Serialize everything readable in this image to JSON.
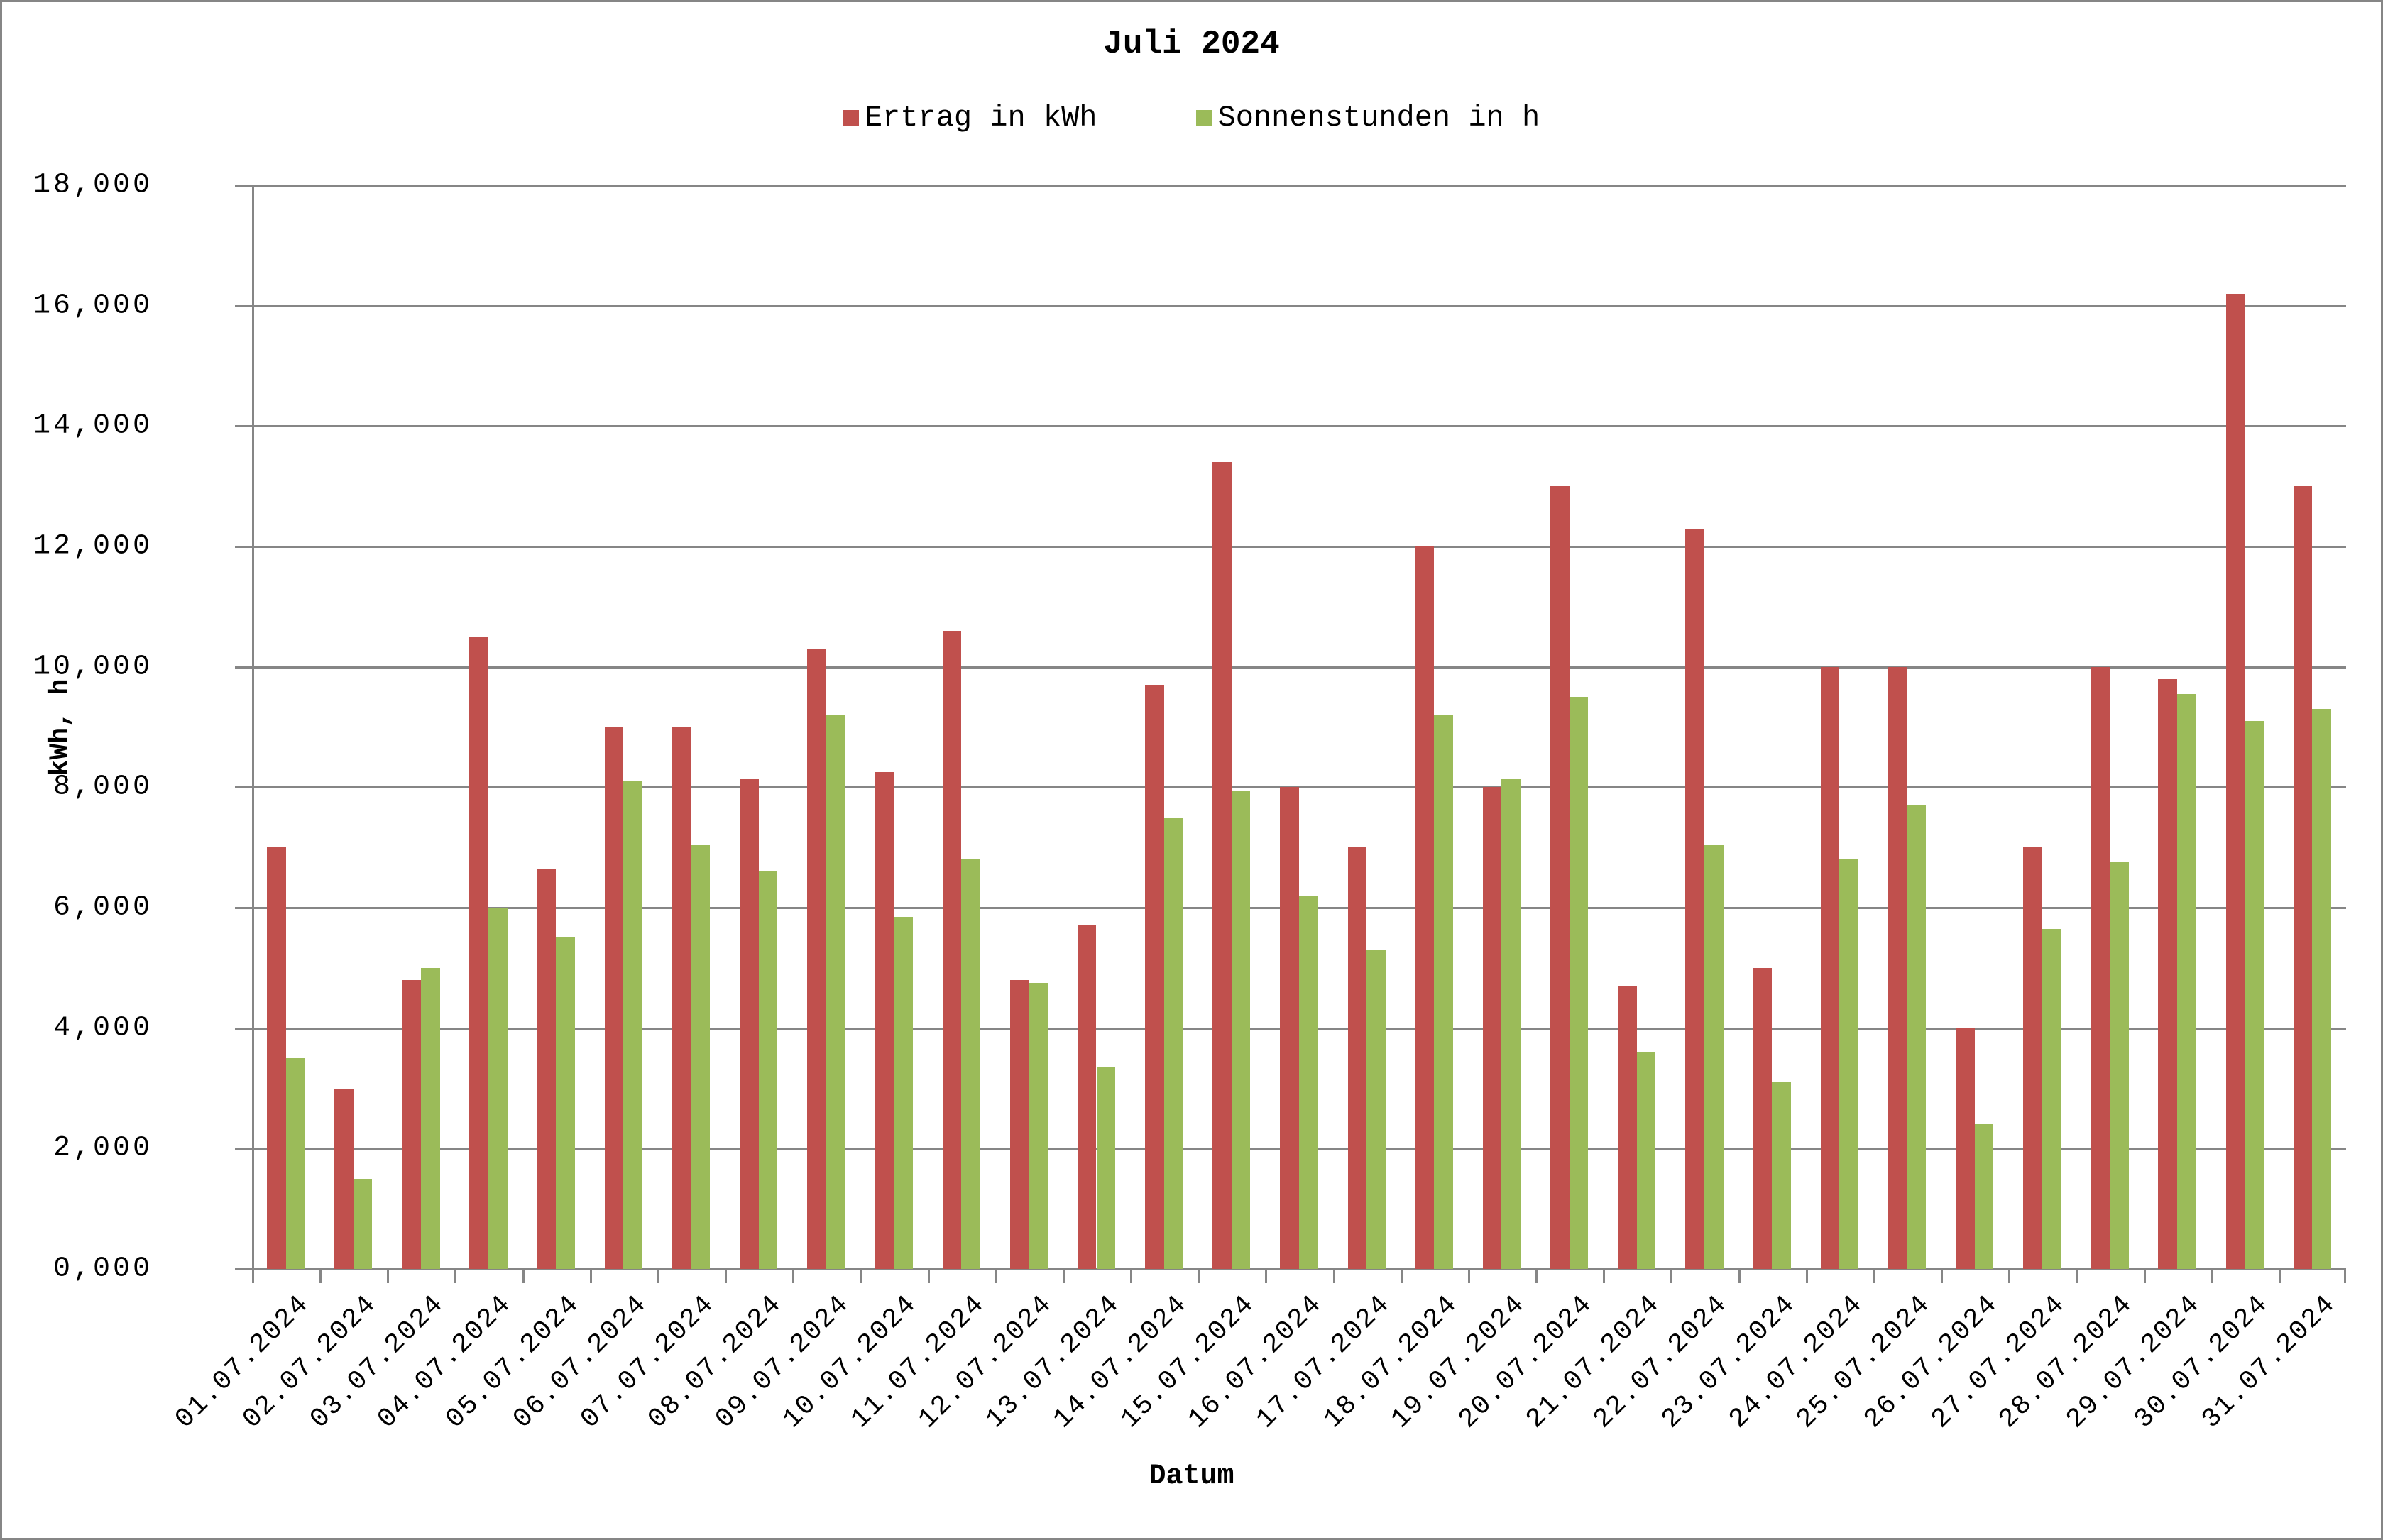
{
  "chart_data": {
    "type": "bar",
    "title": "Juli 2024",
    "xlabel": "Datum",
    "ylabel": "kWh, h",
    "ylim": [
      0,
      18
    ],
    "yticks": [
      "0,000",
      "2,000",
      "4,000",
      "6,000",
      "8,000",
      "10,000",
      "12,000",
      "14,000",
      "16,000",
      "18,000"
    ],
    "grid": true,
    "legend_position": "top",
    "categories": [
      "01.07.2024",
      "02.07.2024",
      "03.07.2024",
      "04.07.2024",
      "05.07.2024",
      "06.07.2024",
      "07.07.2024",
      "08.07.2024",
      "09.07.2024",
      "10.07.2024",
      "11.07.2024",
      "12.07.2024",
      "13.07.2024",
      "14.07.2024",
      "15.07.2024",
      "16.07.2024",
      "17.07.2024",
      "18.07.2024",
      "19.07.2024",
      "20.07.2024",
      "21.07.2024",
      "22.07.2024",
      "23.07.2024",
      "24.07.2024",
      "25.07.2024",
      "26.07.2024",
      "27.07.2024",
      "28.07.2024",
      "29.07.2024",
      "30.07.2024",
      "31.07.2024"
    ],
    "series": [
      {
        "name": "Ertrag in kWh",
        "color": "#C0504D",
        "values": [
          7.0,
          3.0,
          4.8,
          10.5,
          6.65,
          9.0,
          9.0,
          8.15,
          10.3,
          8.25,
          10.6,
          4.8,
          5.7,
          9.7,
          13.4,
          8.0,
          7.0,
          12.0,
          8.0,
          13.0,
          4.7,
          12.3,
          5.0,
          10.0,
          10.0,
          4.0,
          7.0,
          10.0,
          9.8,
          16.2,
          13.0
        ]
      },
      {
        "name": "Sonnenstunden in h",
        "color": "#9BBB59",
        "values": [
          3.5,
          1.5,
          5.0,
          6.0,
          5.5,
          8.1,
          7.05,
          6.6,
          9.2,
          5.85,
          6.8,
          4.75,
          3.35,
          7.5,
          7.95,
          6.2,
          5.3,
          9.2,
          8.15,
          9.5,
          3.6,
          7.05,
          3.1,
          6.8,
          7.7,
          2.4,
          5.65,
          6.75,
          9.55,
          9.1,
          9.3
        ]
      }
    ]
  }
}
